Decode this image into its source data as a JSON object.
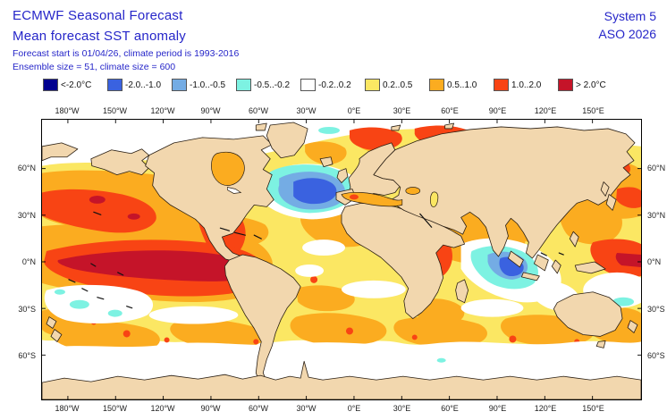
{
  "header": {
    "title_line1": "ECMWF Seasonal Forecast",
    "title_line2": "Mean forecast SST anomaly",
    "meta_line1": "Forecast start is 01/04/26, climate period is 1993-2016",
    "meta_line2": "Ensemble size = 51, climate size = 600",
    "system": "System 5",
    "season": "ASO 2026"
  },
  "legend": {
    "items": [
      {
        "label": "<-2.0°C",
        "color": "#00008F"
      },
      {
        "label": "-2.0..-1.0",
        "color": "#3A62E0"
      },
      {
        "label": "-1.0..-0.5",
        "color": "#74ACE4"
      },
      {
        "label": "-0.5..-0.2",
        "color": "#7DF2E2"
      },
      {
        "label": "-0.2..0.2",
        "color": "#FFFFFF"
      },
      {
        "label": "0.2..0.5",
        "color": "#FBE763"
      },
      {
        "label": "0.5..1.0",
        "color": "#FBAC20"
      },
      {
        "label": "1.0..2.0",
        "color": "#F84414"
      },
      {
        "label": "> 2.0°C",
        "color": "#C51429"
      }
    ]
  },
  "map": {
    "lon_labels": [
      "180°W",
      "150°W",
      "120°W",
      "90°W",
      "60°W",
      "30°W",
      "0°E",
      "30°E",
      "60°E",
      "90°E",
      "120°E",
      "150°E"
    ],
    "lat_labels": [
      "60°N",
      "30°N",
      "0°N",
      "30°S",
      "60°S"
    ]
  },
  "colors": {
    "header_text": "#2626C9",
    "land": "#F2D7AE",
    "coastline": "#2A1F14",
    "ocean_neutral": "#FFFFFF"
  },
  "chart_data": {
    "type": "filled-contour-map",
    "title": "Mean forecast SST anomaly",
    "variable": "sea surface temperature anomaly (°C)",
    "projection": "equirectangular",
    "lon_ticks": [
      "180°W",
      "150°W",
      "120°W",
      "90°W",
      "60°W",
      "30°W",
      "0°E",
      "30°E",
      "60°E",
      "90°E",
      "120°E",
      "150°E"
    ],
    "lat_ticks": [
      "60°N",
      "30°N",
      "0°N",
      "30°S",
      "60°S"
    ],
    "legend_position": "top",
    "bins": [
      {
        "range": "< -2.0",
        "color": "#00008F"
      },
      {
        "range": "-2.0 to -1.0",
        "color": "#3A62E0"
      },
      {
        "range": "-1.0 to -0.5",
        "color": "#74ACE4"
      },
      {
        "range": "-0.5 to -0.2",
        "color": "#7DF2E2"
      },
      {
        "range": "-0.2 to 0.2",
        "color": "#FFFFFF"
      },
      {
        "range": "0.2 to 0.5",
        "color": "#FBE763"
      },
      {
        "range": "0.5 to 1.0",
        "color": "#FBAC20"
      },
      {
        "range": "1.0 to 2.0",
        "color": "#F84414"
      },
      {
        "range": "> 2.0",
        "color": "#C51429"
      }
    ],
    "notable_features": [
      {
        "region": "equatorial eastern Pacific (El Niño tongue, 160°W to South American coast)",
        "anomaly_c": "> 2.0"
      },
      {
        "region": "equatorial Pacific surrounding tongue and Peru coast",
        "anomaly_c": "1.0 to 2.0"
      },
      {
        "region": "North Atlantic south of Greenland",
        "anomaly_c": "-2.0 to -1.0 core with -1.0 to -0.2 halo"
      },
      {
        "region": "eastern Indian Ocean off Sumatra",
        "anomaly_c": "-2.0 to -1.0 core with cold halo"
      },
      {
        "region": "North Pacific mid-latitudes",
        "anomaly_c": "0.5 to 2.0 with small > 2.0 spots"
      },
      {
        "region": "Barents/Kara Seas and Sea of Okhotsk",
        "anomaly_c": "1.0 to 2.0"
      },
      {
        "region": "western Indian Ocean near Horn of Africa",
        "anomaly_c": "1.0 to 2.0"
      },
      {
        "region": "Gulf of Alaska coastal strip",
        "anomaly_c": "-1.0 to -0.2"
      },
      {
        "region": "subtropical South Pacific and Southern Ocean south of 55°S",
        "anomaly_c": "-0.2 to 0.2"
      },
      {
        "region": "most remaining tropical and mid-latitude oceans",
        "anomaly_c": "0.2 to 1.0"
      }
    ]
  }
}
